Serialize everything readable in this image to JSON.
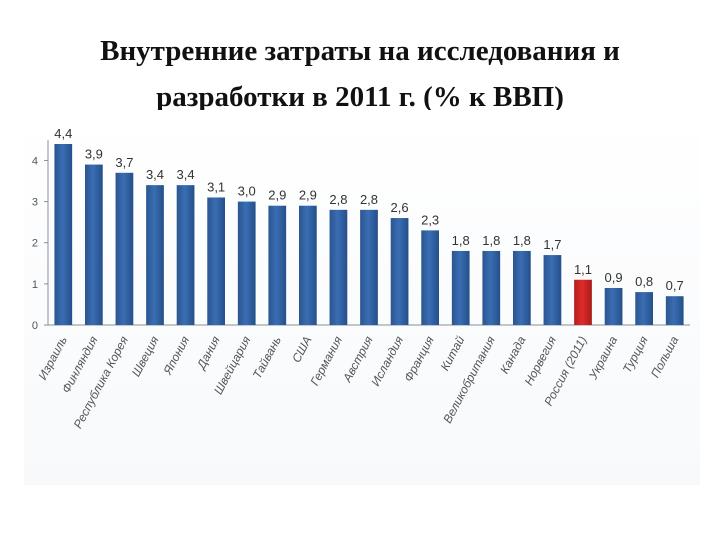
{
  "title_line1": "Внутренние затраты на исследования и",
  "title_line2": "разработки в 2011 г. (% к ВВП)",
  "colors": {
    "bar": "#3a6db3",
    "bar_highlight": "#e02a2a",
    "grid": "#d9dde3",
    "axis": "#8a8f96"
  },
  "chart_data": {
    "type": "bar",
    "title": "Внутренние затраты на исследования и разработки в 2011 г. (% к ВВП)",
    "xlabel": "",
    "ylabel": "",
    "ylim": [
      0,
      4.4
    ],
    "yticks": [
      "0",
      "1",
      "2",
      "3",
      "4"
    ],
    "grid": false,
    "legend": "none",
    "highlight": "Россия (2011)",
    "categories": [
      "Израиль",
      "Финляндия",
      "Республика Корея",
      "Швеция",
      "Япония",
      "Дания",
      "Швейцария",
      "Тайвань",
      "США",
      "Германия",
      "Австрия",
      "Исландия",
      "Франция",
      "Китай",
      "Великобритания",
      "Канада",
      "Норвегия",
      "Россия (2011)",
      "Украина",
      "Турция",
      "Польша"
    ],
    "values": [
      4.4,
      3.9,
      3.7,
      3.4,
      3.4,
      3.1,
      3.0,
      2.9,
      2.9,
      2.8,
      2.8,
      2.6,
      2.3,
      1.8,
      1.8,
      1.8,
      1.7,
      1.1,
      0.9,
      0.8,
      0.7
    ],
    "value_labels": [
      "4,4",
      "3,9",
      "3,7",
      "3,4",
      "3,4",
      "3,1",
      "3,0",
      "2,9",
      "2,9",
      "2,8",
      "2,8",
      "2,6",
      "2,3",
      "1,8",
      "1,8",
      "1,8",
      "1,7",
      "1,1",
      "0,9",
      "0,8",
      "0,7"
    ]
  }
}
